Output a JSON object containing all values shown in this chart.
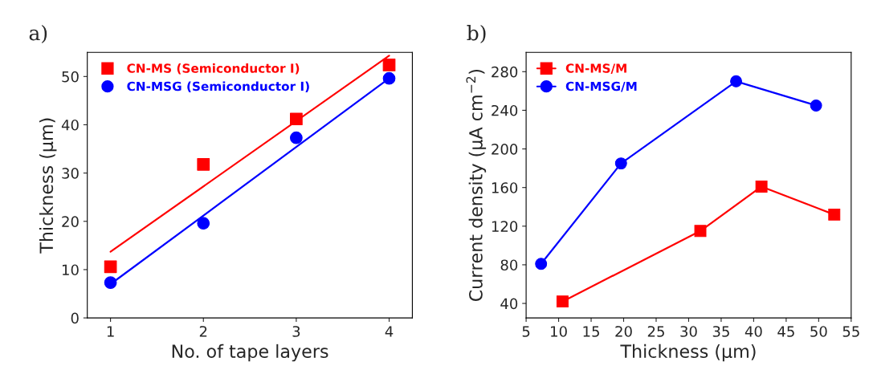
{
  "chart_data": [
    {
      "type": "scatter",
      "annotations": [
        "a)"
      ],
      "xlabel": "No. of tape layers",
      "ylabel": "Thickness (μm)",
      "x": [
        1,
        2,
        3,
        4
      ],
      "xlim": [
        0.75,
        4.25
      ],
      "xticks": [
        1,
        2,
        3,
        4
      ],
      "ylim": [
        0,
        55
      ],
      "yticks": [
        0,
        10,
        20,
        30,
        40,
        50
      ],
      "legend": "top left",
      "grid": false,
      "series": [
        {
          "name": "CN-MS (Semiconductor I)",
          "color": "#ff0000",
          "marker": "square",
          "values": [
            10.6,
            31.8,
            41.2,
            52.4
          ]
        },
        {
          "name": "CN-MSG (Semiconductor I)",
          "color": "#0000ff",
          "marker": "circle",
          "values": [
            7.3,
            19.6,
            37.3,
            49.6
          ]
        },
        {
          "type": "line",
          "color": "#ff0000",
          "marker": "none",
          "x": [
            1,
            4
          ],
          "values": [
            13.7,
            54.3
          ]
        },
        {
          "type": "line",
          "color": "#0000ff",
          "marker": "none",
          "x": [
            1,
            4
          ],
          "values": [
            7.0,
            49.6
          ]
        }
      ]
    },
    {
      "type": "line",
      "annotations": [
        "b)"
      ],
      "xlabel": "Thickness (μm)",
      "ylabel": "Current density (μA cm$^{−2}$)",
      "xlim": [
        5,
        55
      ],
      "xticks": [
        5,
        10,
        15,
        20,
        25,
        30,
        35,
        40,
        45,
        50,
        55
      ],
      "ylim": [
        25,
        300
      ],
      "yticks": [
        40,
        80,
        120,
        160,
        200,
        240,
        280
      ],
      "legend": "top left",
      "grid": false,
      "series": [
        {
          "name": "CN-MS/M",
          "color": "#ff0000",
          "marker": "square",
          "x": [
            10.6,
            31.8,
            41.2,
            52.4
          ],
          "values": [
            42,
            115,
            161,
            132
          ]
        },
        {
          "name": "CN-MSG/M",
          "color": "#0000ff",
          "marker": "circle",
          "x": [
            7.3,
            19.6,
            37.3,
            49.6
          ],
          "values": [
            81,
            185,
            270,
            245
          ]
        }
      ]
    }
  ]
}
